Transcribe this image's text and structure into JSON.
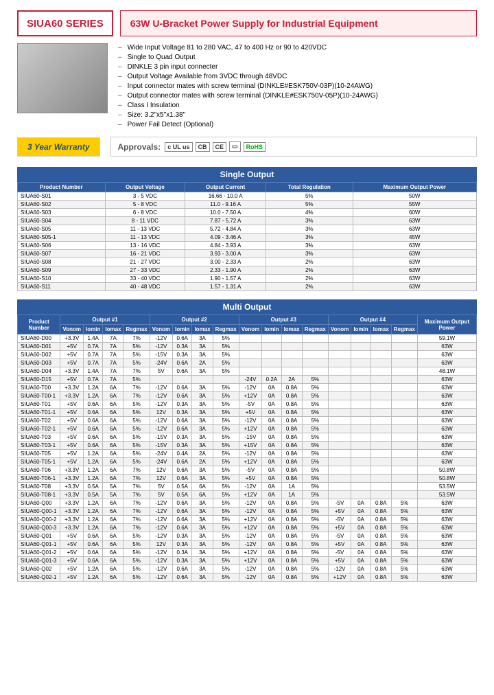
{
  "series": "SIUA60 SERIES",
  "title": "63W U-Bracket Power Supply for Industrial Equipment",
  "features": [
    "Wide Input Voltage 81 to 280 VAC, 47 to 400 Hz or 90 to 420VDC",
    "Single to Quad Output",
    "DINKLE 3 pin input connecter",
    "Output Voltage Available from 3VDC through 48VDC",
    "Input connector mates with screw terminal (DINKLE#ESK750V-03P)(10-24AWG)",
    "Output connector mates with screw terminal (DINKLE#ESK750V-05P)(10-24AWG)",
    "Class I Insulation",
    "Size: 3.2\"x5\"x1.38\"",
    "Power Fail Detect (Optional)"
  ],
  "warranty": "3 Year Warranty",
  "approvals_label": "Approvals:",
  "single_title": "Single Output",
  "single_cols": [
    "Product Number",
    "Output Voltage",
    "Output Current",
    "Total Regulation",
    "Maximum Output Power"
  ],
  "single_rows": [
    [
      "SIUA60-S01",
      "3 - 5 VDC",
      "16.66 - 10.0 A",
      "5%",
      "50W"
    ],
    [
      "SIUA60-S02",
      "5 - 8 VDC",
      "11.0 - 9.16 A",
      "5%",
      "55W"
    ],
    [
      "SIUA60-S03",
      "6 - 8 VDC",
      "10.0 - 7.50 A",
      "4%",
      "60W"
    ],
    [
      "SIUA60-S04",
      "8 - 11 VDC",
      "7.87 - 5.72 A",
      "3%",
      "63W"
    ],
    [
      "SIUA60-S05",
      "11 - 13 VDC",
      "5.72 - 4.84 A",
      "3%",
      "63W"
    ],
    [
      "SIUA60-S05-1",
      "11 - 13 VDC",
      "4.09 - 3.46 A",
      "3%",
      "45W"
    ],
    [
      "SIUA60-S06",
      "13 - 16 VDC",
      "4.84 - 3.93 A",
      "3%",
      "63W"
    ],
    [
      "SIUA60-S07",
      "16 - 21 VDC",
      "3.93 - 3.00 A",
      "3%",
      "63W"
    ],
    [
      "SIUA60-S08",
      "21 - 27 VDC",
      "3.00 - 2.33 A",
      "2%",
      "63W"
    ],
    [
      "SIUA60-S09",
      "27 - 33 VDC",
      "2.33 - 1.90 A",
      "2%",
      "63W"
    ],
    [
      "SIUA60-S10",
      "33 - 40 VDC",
      "1.90 - 1.57 A",
      "2%",
      "63W"
    ],
    [
      "SIUA60-S11",
      "40 - 48 VDC",
      "1.57 - 1.31 A",
      "2%",
      "63W"
    ]
  ],
  "multi_title": "Multi Output",
  "multi_grp": [
    "Output #1",
    "Output #2",
    "Output #3",
    "Output #4"
  ],
  "multi_sub": [
    "Vonom",
    "Iomin",
    "Iomax",
    "Regmax"
  ],
  "multi_pn": "Product Number",
  "multi_max": "Maximum Output Power",
  "multi_rows": [
    [
      "SIUA60-D00",
      "+3.3V",
      "1.4A",
      "7A",
      "7%",
      "-12V",
      "0.6A",
      "3A",
      "5%",
      "",
      "",
      "",
      "",
      "",
      "",
      "",
      "",
      "59.1W"
    ],
    [
      "SIUA60-D01",
      "+5V",
      "0.7A",
      "7A",
      "5%",
      "-12V",
      "0.3A",
      "3A",
      "5%",
      "",
      "",
      "",
      "",
      "",
      "",
      "",
      "",
      "63W"
    ],
    [
      "SIUA60-D02",
      "+5V",
      "0.7A",
      "7A",
      "5%",
      "-15V",
      "0.3A",
      "3A",
      "5%",
      "",
      "",
      "",
      "",
      "",
      "",
      "",
      "",
      "63W"
    ],
    [
      "SIUA60-D03",
      "+5V",
      "0.7A",
      "7A",
      "5%",
      "-24V",
      "0.6A",
      "2A",
      "5%",
      "",
      "",
      "",
      "",
      "",
      "",
      "",
      "",
      "63W"
    ],
    [
      "SIUA60-D04",
      "+3.3V",
      "1.4A",
      "7A",
      "7%",
      "5V",
      "0.6A",
      "3A",
      "5%",
      "",
      "",
      "",
      "",
      "",
      "",
      "",
      "",
      "48.1W"
    ],
    [
      "SIUA60-D15",
      "+5V",
      "0.7A",
      "7A",
      "5%",
      "",
      "",
      "",
      "",
      "-24V",
      "0.2A",
      "2A",
      "5%",
      "",
      "",
      "",
      "",
      "63W"
    ],
    [
      "SIUA60-T00",
      "+3.3V",
      "1.2A",
      "6A",
      "7%",
      "-12V",
      "0.6A",
      "3A",
      "5%",
      "-12V",
      "0A",
      "0.8A",
      "5%",
      "",
      "",
      "",
      "",
      "63W"
    ],
    [
      "SIUA60-T00-1",
      "+3.3V",
      "1.2A",
      "6A",
      "7%",
      "-12V",
      "0.6A",
      "3A",
      "5%",
      "+12V",
      "0A",
      "0.8A",
      "5%",
      "",
      "",
      "",
      "",
      "63W"
    ],
    [
      "SIUA60-T01",
      "+5V",
      "0.6A",
      "6A",
      "5%",
      "-12V",
      "0.3A",
      "3A",
      "5%",
      "-5V",
      "0A",
      "0.8A",
      "5%",
      "",
      "",
      "",
      "",
      "63W"
    ],
    [
      "SIUA60-T01-1",
      "+5V",
      "0.6A",
      "6A",
      "5%",
      "12V",
      "0.3A",
      "3A",
      "5%",
      "+5V",
      "0A",
      "0.8A",
      "5%",
      "",
      "",
      "",
      "",
      "63W"
    ],
    [
      "SIUA60-T02",
      "+5V",
      "0.6A",
      "6A",
      "5%",
      "-12V",
      "0.6A",
      "3A",
      "5%",
      "-12V",
      "0A",
      "0.8A",
      "5%",
      "",
      "",
      "",
      "",
      "63W"
    ],
    [
      "SIUA60-T02-1",
      "+5V",
      "0.6A",
      "6A",
      "5%",
      "-12V",
      "0.6A",
      "3A",
      "5%",
      "+12V",
      "0A",
      "0.8A",
      "5%",
      "",
      "",
      "",
      "",
      "63W"
    ],
    [
      "SIUA60-T03",
      "+5V",
      "0.6A",
      "6A",
      "5%",
      "-15V",
      "0.3A",
      "3A",
      "5%",
      "-15V",
      "0A",
      "0.8A",
      "5%",
      "",
      "",
      "",
      "",
      "63W"
    ],
    [
      "SIUA60-T03-1",
      "+5V",
      "0.6A",
      "6A",
      "5%",
      "-15V",
      "0.3A",
      "3A",
      "5%",
      "+15V",
      "0A",
      "0.8A",
      "5%",
      "",
      "",
      "",
      "",
      "63W"
    ],
    [
      "SIUA60-T05",
      "+5V",
      "1.2A",
      "6A",
      "5%",
      "-24V",
      "0.4A",
      "2A",
      "5%",
      "-12V",
      "0A",
      "0.8A",
      "5%",
      "",
      "",
      "",
      "",
      "63W"
    ],
    [
      "SIUA60-T05-1",
      "+5V",
      "1.2A",
      "6A",
      "5%",
      "-24V",
      "0.6A",
      "2A",
      "5%",
      "+12V",
      "0A",
      "0.8A",
      "5%",
      "",
      "",
      "",
      "",
      "63W"
    ],
    [
      "SIUA60-T06",
      "+3.3V",
      "1.2A",
      "6A",
      "7%",
      "12V",
      "0.6A",
      "3A",
      "5%",
      "-5V",
      "0A",
      "0.8A",
      "5%",
      "",
      "",
      "",
      "",
      "50.8W"
    ],
    [
      "SIUA60-T06-1",
      "+3.3V",
      "1.2A",
      "6A",
      "7%",
      "12V",
      "0.6A",
      "3A",
      "5%",
      "+5V",
      "0A",
      "0.8A",
      "5%",
      "",
      "",
      "",
      "",
      "50.8W"
    ],
    [
      "SIUA60-T08",
      "+3.3V",
      "0.5A",
      "5A",
      "7%",
      "5V",
      "0.5A",
      "6A",
      "5%",
      "-12V",
      "0A",
      "1A",
      "5%",
      "",
      "",
      "",
      "",
      "53.5W"
    ],
    [
      "SIUA60-T08-1",
      "+3.3V",
      "0.5A",
      "5A",
      "7%",
      "5V",
      "0.5A",
      "6A",
      "5%",
      "+12V",
      "0A",
      "1A",
      "5%",
      "",
      "",
      "",
      "",
      "53.5W"
    ],
    [
      "SIUA60-Q00",
      "+3.3V",
      "1.2A",
      "6A",
      "7%",
      "-12V",
      "0.6A",
      "3A",
      "5%",
      "-12V",
      "0A",
      "0.8A",
      "5%",
      "-5V",
      "0A",
      "0.8A",
      "5%",
      "63W"
    ],
    [
      "SIUA60-Q00-1",
      "+3.3V",
      "1.2A",
      "6A",
      "7%",
      "-12V",
      "0.6A",
      "3A",
      "5%",
      "-12V",
      "0A",
      "0.8A",
      "5%",
      "+5V",
      "0A",
      "0.8A",
      "5%",
      "63W"
    ],
    [
      "SIUA60-Q00-2",
      "+3.3V",
      "1.2A",
      "6A",
      "7%",
      "-12V",
      "0.6A",
      "3A",
      "5%",
      "+12V",
      "0A",
      "0.8A",
      "5%",
      "-5V",
      "0A",
      "0.8A",
      "5%",
      "63W"
    ],
    [
      "SIUA60-Q00-3",
      "+3.3V",
      "1.2A",
      "6A",
      "7%",
      "-12V",
      "0.6A",
      "3A",
      "5%",
      "+12V",
      "0A",
      "0.8A",
      "5%",
      "+5V",
      "0A",
      "0.8A",
      "5%",
      "63W"
    ],
    [
      "SIUA60-Q01",
      "+5V",
      "0.6A",
      "6A",
      "5%",
      "-12V",
      "0.3A",
      "3A",
      "5%",
      "-12V",
      "0A",
      "0.8A",
      "5%",
      "-5V",
      "0A",
      "0.8A",
      "5%",
      "63W"
    ],
    [
      "SIUA60-Q01-1",
      "+5V",
      "0.6A",
      "6A",
      "5%",
      "12V",
      "0.3A",
      "3A",
      "5%",
      "-12V",
      "0A",
      "0.8A",
      "5%",
      "+5V",
      "0A",
      "0.8A",
      "5%",
      "63W"
    ],
    [
      "SIUA60-Q01-2",
      "+5V",
      "0.6A",
      "6A",
      "5%",
      "-12V",
      "0.3A",
      "3A",
      "5%",
      "+12V",
      "0A",
      "0.8A",
      "5%",
      "-5V",
      "0A",
      "0.8A",
      "5%",
      "63W"
    ],
    [
      "SIUA60-Q01-3",
      "+5V",
      "0.6A",
      "6A",
      "5%",
      "-12V",
      "0.3A",
      "3A",
      "5%",
      "+12V",
      "0A",
      "0.8A",
      "5%",
      "+5V",
      "0A",
      "0.8A",
      "5%",
      "63W"
    ],
    [
      "SIUA60-Q02",
      "+5V",
      "1.2A",
      "6A",
      "5%",
      "-12V",
      "0.6A",
      "3A",
      "5%",
      "-12V",
      "0A",
      "0.8A",
      "5%",
      "-12V",
      "0A",
      "0.8A",
      "5%",
      "63W"
    ],
    [
      "SIUA60-Q02-1",
      "+5V",
      "1.2A",
      "6A",
      "5%",
      "-12V",
      "0.6A",
      "3A",
      "5%",
      "-12V",
      "0A",
      "0.8A",
      "5%",
      "+12V",
      "0A",
      "0.8A",
      "5%",
      "63W"
    ]
  ]
}
